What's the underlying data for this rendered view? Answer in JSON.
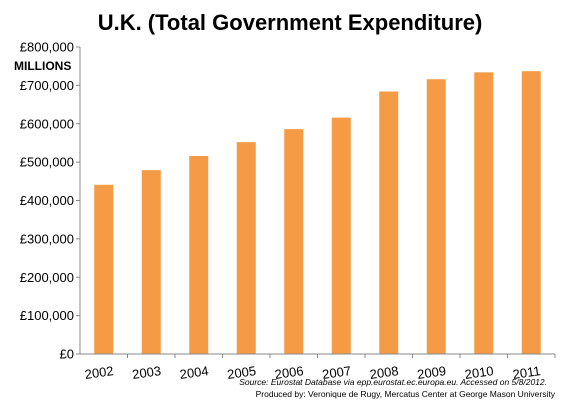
{
  "chart_data": {
    "type": "bar",
    "title": "U.K. (Total Government Expenditure)",
    "ylabel": "MILLIONS",
    "xlabel": "",
    "categories": [
      "2002",
      "2003",
      "2004",
      "2005",
      "2006",
      "2007",
      "2008",
      "2009",
      "2010",
      "2011"
    ],
    "values": [
      441000,
      479000,
      516000,
      552000,
      586000,
      616000,
      684000,
      716000,
      734000,
      737000
    ],
    "ylim": [
      0,
      800000
    ],
    "yticks": [
      0,
      100000,
      200000,
      300000,
      400000,
      500000,
      600000,
      700000,
      800000
    ],
    "ytick_labels": [
      "£0",
      "£100,000",
      "£200,000",
      "£300,000",
      "£400,000",
      "£500,000",
      "£600,000",
      "£700,000",
      "£800,000"
    ],
    "bar_color": "#f59a45",
    "grid": false,
    "source": "Source: Eurostat Database via epp.eurostat.ec.europa.eu. Accessed on 5/8/2012.",
    "credit": "Produced by: Veronique de Rugy, Mercatus Center at George Mason University"
  }
}
